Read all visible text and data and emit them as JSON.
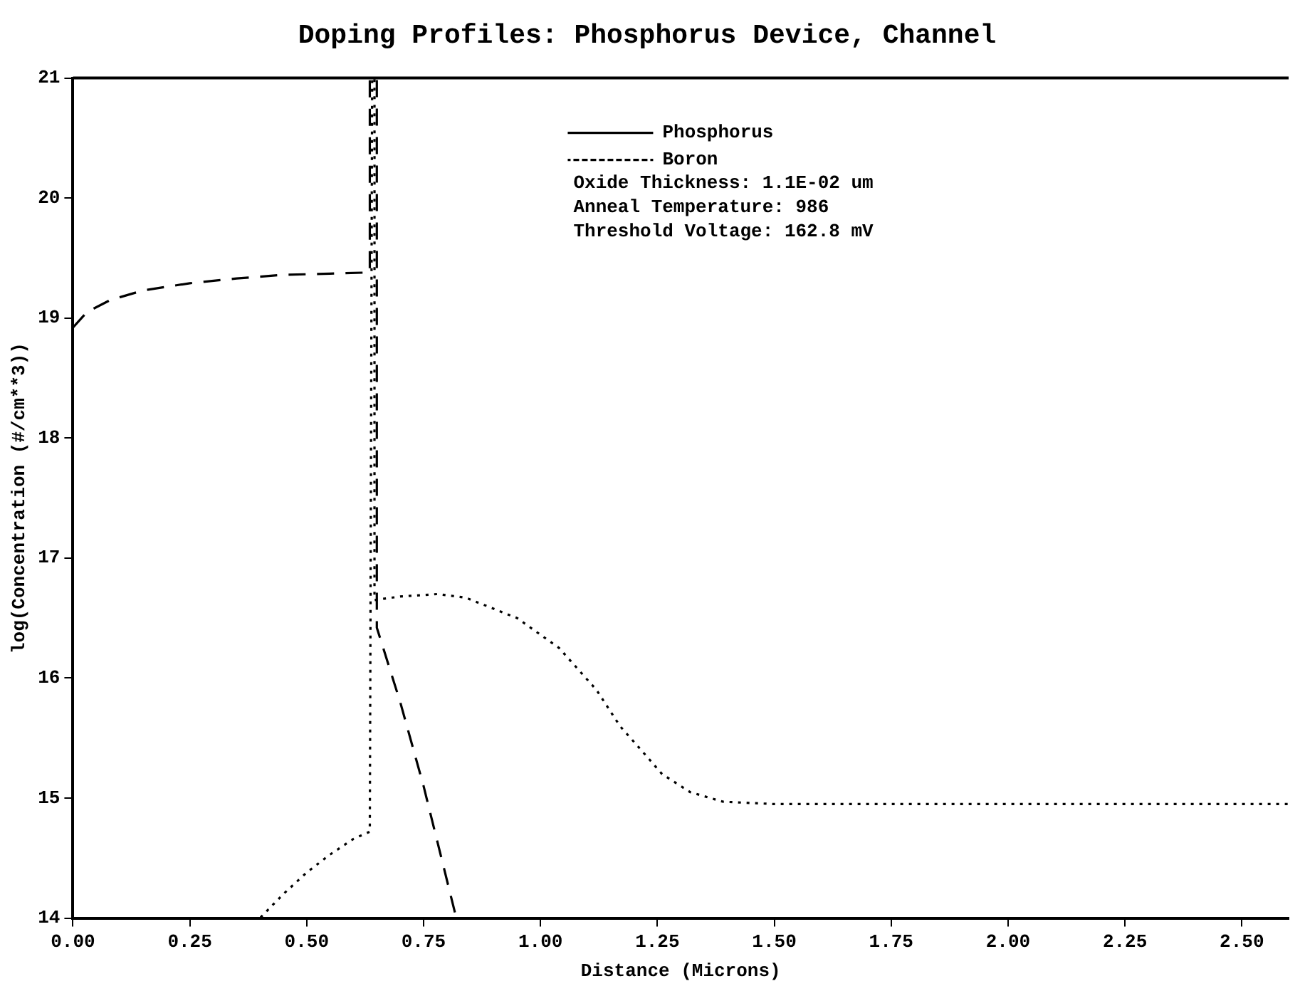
{
  "chart_data": {
    "type": "line",
    "title": "Doping Profiles: Phosphorus Device, Channel",
    "xlabel": "Distance (Microns)",
    "ylabel": "log(Concentration (#/cm**3))",
    "xlim": [
      0,
      2.6
    ],
    "ylim": [
      14,
      21
    ],
    "xticks": [
      {
        "value": 0,
        "label": "0.00"
      },
      {
        "value": 0.25,
        "label": "0.25"
      },
      {
        "value": 0.5,
        "label": "0.50"
      },
      {
        "value": 0.75,
        "label": "0.75"
      },
      {
        "value": 1,
        "label": "1.00"
      },
      {
        "value": 1.25,
        "label": "1.25"
      },
      {
        "value": 1.5,
        "label": "1.50"
      },
      {
        "value": 1.75,
        "label": "1.75"
      },
      {
        "value": 2,
        "label": "2.00"
      },
      {
        "value": 2.25,
        "label": "2.25"
      },
      {
        "value": 2.5,
        "label": "2.50"
      }
    ],
    "yticks": [
      14,
      15,
      16,
      17,
      18,
      19,
      20,
      21
    ],
    "grid": false,
    "legend": "top right",
    "marker": "none",
    "series": [
      {
        "name": "Phosphorus",
        "color": "#000000",
        "line_style": "dashed",
        "x": [
          0,
          0.03,
          0.08,
          0.15,
          0.25,
          0.35,
          0.45,
          0.55,
          0.635,
          0.635,
          0.65,
          0.65,
          0.7,
          0.75,
          0.82
        ],
        "values": [
          18.92,
          19.05,
          19.15,
          19.23,
          19.29,
          19.33,
          19.36,
          19.37,
          19.38,
          21,
          21,
          16.42,
          15.8,
          15.1,
          14
        ]
      },
      {
        "name": "Boron",
        "color": "#000000",
        "line_style": "dotted",
        "x": [
          0,
          0.4,
          0.45,
          0.5,
          0.55,
          0.6,
          0.635,
          0.64,
          0.645,
          0.645,
          0.7,
          0.78,
          0.84,
          0.95,
          1.04,
          1.12,
          1.17,
          1.22,
          1.26,
          1.32,
          1.39,
          1.5,
          1.75,
          2,
          2.25,
          2.6
        ],
        "values": [
          14,
          14,
          14.2,
          14.38,
          14.53,
          14.66,
          14.72,
          21,
          21,
          16.65,
          16.68,
          16.7,
          16.67,
          16.5,
          16.25,
          15.9,
          15.6,
          15.38,
          15.2,
          15.05,
          14.97,
          14.95,
          14.95,
          14.95,
          14.95,
          14.95
        ]
      }
    ],
    "annotations": [
      "Oxide Thickness: 1.1E-02 um",
      "Anneal Temperature: 986",
      "Threshold Voltage: 162.8 mV"
    ]
  }
}
